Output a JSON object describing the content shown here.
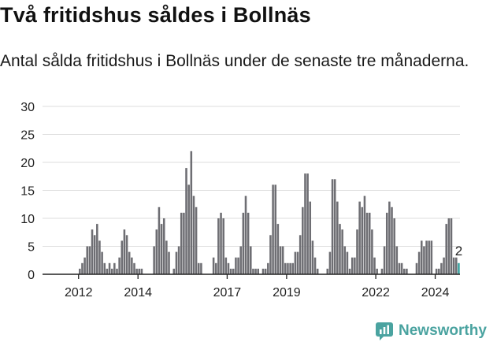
{
  "header": {
    "title": "Två fritidshus såldes i Bollnäs",
    "subtitle": "Antal sålda fritidshus i Bollnäs under de senaste tre månaderna."
  },
  "branding": {
    "logo_text": "Newsworthy",
    "logo_icon": "newsworthy-logo-icon"
  },
  "colors": {
    "bar": "#6e6e73",
    "highlight": "#3aa3a0",
    "grid": "#dddddd",
    "axis": "#222222",
    "brand": "#4aa3a0"
  },
  "chart_data": {
    "type": "bar",
    "title": "Två fritidshus såldes i Bollnäs",
    "subtitle": "Antal sålda fritidshus i Bollnäs under de senaste tre månaderna.",
    "x_start_year": 2011,
    "xticks": [
      2012,
      2014,
      2017,
      2019,
      2022,
      2024
    ],
    "ylim": [
      0,
      30
    ],
    "yticks": [
      0,
      5,
      10,
      15,
      20,
      25,
      30
    ],
    "grid": true,
    "values": [
      0,
      0,
      0,
      0,
      0,
      0,
      0,
      0,
      0,
      0,
      0,
      0,
      1,
      2,
      3,
      5,
      5,
      8,
      7,
      9,
      6,
      4,
      2,
      1,
      2,
      1,
      2,
      1,
      3,
      6,
      8,
      7,
      4,
      3,
      2,
      1,
      1,
      1,
      0,
      0,
      0,
      0,
      5,
      8,
      12,
      9,
      10,
      6,
      4,
      0,
      1,
      4,
      5,
      11,
      11,
      19,
      16,
      22,
      14,
      12,
      2,
      2,
      0,
      0,
      0,
      0,
      3,
      2,
      10,
      11,
      10,
      3,
      2,
      1,
      1,
      3,
      3,
      5,
      11,
      14,
      11,
      5,
      1,
      1,
      1,
      0,
      1,
      1,
      2,
      7,
      16,
      16,
      9,
      5,
      5,
      2,
      2,
      2,
      2,
      4,
      4,
      7,
      12,
      18,
      18,
      13,
      6,
      3,
      1,
      0,
      0,
      0,
      1,
      4,
      17,
      17,
      13,
      9,
      8,
      5,
      4,
      1,
      3,
      3,
      8,
      13,
      12,
      14,
      11,
      11,
      8,
      3,
      1,
      0,
      1,
      5,
      11,
      13,
      12,
      10,
      5,
      2,
      2,
      1,
      1,
      0,
      0,
      0,
      2,
      4,
      6,
      5,
      6,
      6,
      6,
      0,
      1,
      1,
      2,
      3,
      9,
      10,
      10,
      3,
      3,
      2
    ],
    "highlight_last": true,
    "annotation": "2"
  }
}
